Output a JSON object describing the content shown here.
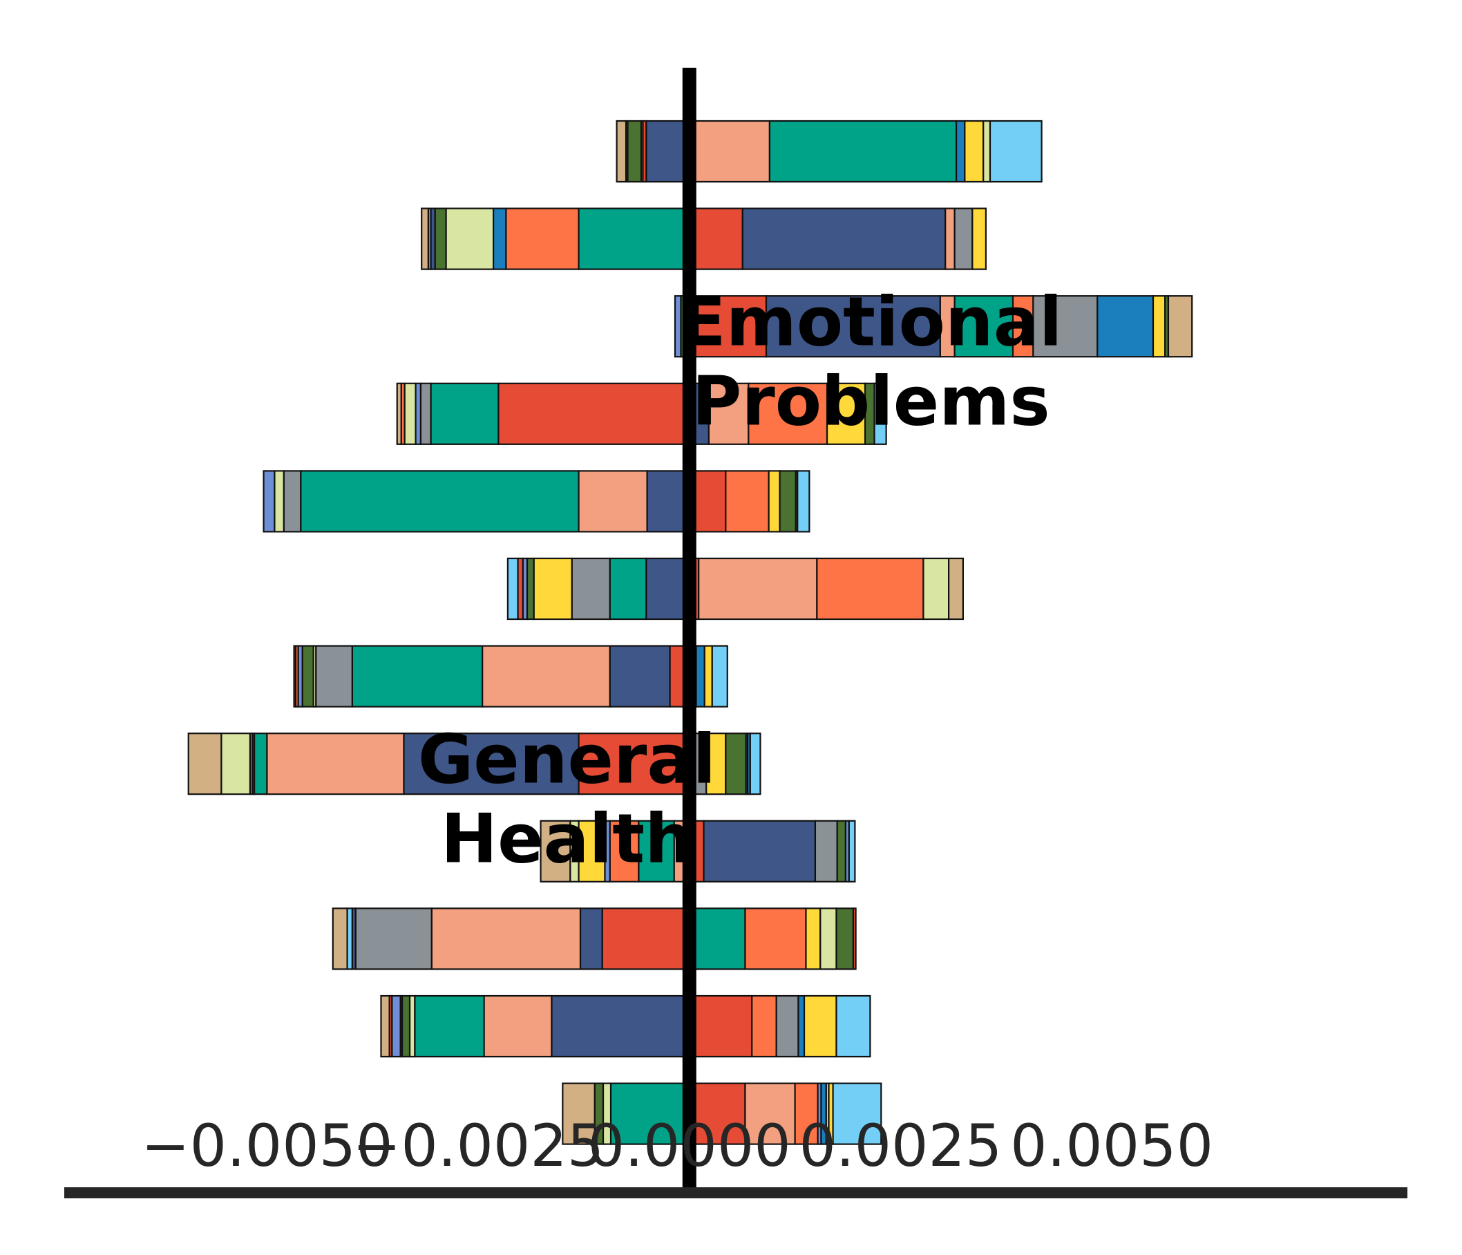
{
  "chart_data": {
    "type": "bar",
    "orientation": "horizontal",
    "stacking": "diverging",
    "xlim": [
      -0.0074,
      0.0085
    ],
    "xticks": [
      {
        "value": -0.005,
        "label": "−0.0050"
      },
      {
        "value": -0.0025,
        "label": "−0.0025"
      },
      {
        "value": 0.0,
        "label": "0.0000"
      },
      {
        "value": 0.0025,
        "label": "0.0025"
      },
      {
        "value": 0.005,
        "label": "0.0050"
      }
    ],
    "grid": false,
    "legend": "none",
    "annotations": [
      {
        "label": "emotional-problems-annotation",
        "lines": [
          "Emotional",
          "Problems"
        ],
        "x": 0.00215,
        "y": 2.4
      },
      {
        "label": "general-health-annotation",
        "lines": [
          "General",
          "Health"
        ],
        "x": -0.00145,
        "y": 7.4
      }
    ],
    "bars": [
      {
        "neg": [
          [
            "#d2b084",
            0.00011
          ],
          [
            "#4a7230",
            2e-05
          ],
          [
            "#4a7230",
            0.00016
          ],
          [
            "#f2a07f",
            2e-05
          ],
          [
            "#e64c35",
            4e-05
          ],
          [
            "#3f5688",
            0.00051
          ]
        ],
        "pos": [
          [
            "#f2a07f",
            0.00095
          ],
          [
            "#00a388",
            0.00221
          ],
          [
            "#1b7fbe",
            0.0001
          ],
          [
            "#ffd83a",
            0.00022
          ],
          [
            "#d9e6a1",
            8e-05
          ],
          [
            "#74cff7",
            0.00061
          ]
        ]
      },
      {
        "neg": [
          [
            "#d2b084",
            8e-05
          ],
          [
            "#6e8fd6",
            3e-05
          ],
          [
            "#3f5688",
            5e-05
          ],
          [
            "#4a7230",
            0.00013
          ],
          [
            "#d9e6a1",
            0.00056
          ],
          [
            "#1b7fbe",
            0.00015
          ],
          [
            "#ff7446",
            0.00086
          ],
          [
            "#00a388",
            0.00131
          ]
        ],
        "pos": [
          [
            "#e64c35",
            0.00063
          ],
          [
            "#3f5688",
            0.0024
          ],
          [
            "#f2a07f",
            0.00011
          ],
          [
            "#8b9297",
            0.00021
          ],
          [
            "#ffd83a",
            0.00016
          ]
        ]
      },
      {
        "neg": [
          [
            "#6e8fd6",
            7e-05
          ],
          [
            "#4a7230",
            0.0001
          ]
        ],
        "pos": [
          [
            "#e64c35",
            0.00091
          ],
          [
            "#3f5688",
            0.00206
          ],
          [
            "#f2a07f",
            0.00017
          ],
          [
            "#00a388",
            0.00069
          ],
          [
            "#ff7446",
            0.00024
          ],
          [
            "#8b9297",
            0.00076
          ],
          [
            "#1b7fbe",
            0.00066
          ],
          [
            "#ffd83a",
            0.00014
          ],
          [
            "#4a7230",
            4e-05
          ],
          [
            "#d2b084",
            0.00028
          ]
        ]
      },
      {
        "neg": [
          [
            "#d2b084",
            5e-05
          ],
          [
            "#ff7446",
            4e-05
          ],
          [
            "#d9e6a1",
            0.00013
          ],
          [
            "#6e8fd6",
            6e-05
          ],
          [
            "#8b9297",
            0.00012
          ],
          [
            "#00a388",
            0.0008
          ],
          [
            "#e64c35",
            0.00226
          ]
        ],
        "pos": [
          [
            "#3f5688",
            0.00023
          ],
          [
            "#f2a07f",
            0.00047
          ],
          [
            "#ff7446",
            0.00093
          ],
          [
            "#ffd83a",
            0.00045
          ],
          [
            "#4a7230",
            0.00011
          ],
          [
            "#74cff7",
            0.00014
          ]
        ]
      },
      {
        "neg": [
          [
            "#6e8fd6",
            0.00013
          ],
          [
            "#d9e6a1",
            0.00011
          ],
          [
            "#8b9297",
            0.0002
          ],
          [
            "#00a388",
            0.00329
          ],
          [
            "#f2a07f",
            0.00081
          ],
          [
            "#3f5688",
            0.0005
          ]
        ],
        "pos": [
          [
            "#e64c35",
            0.00043
          ],
          [
            "#ff7446",
            0.00051
          ],
          [
            "#ffd83a",
            0.00013
          ],
          [
            "#4a7230",
            0.00019
          ],
          [
            "#f2a07f",
            2e-05
          ],
          [
            "#74cff7",
            0.00014
          ]
        ]
      },
      {
        "neg": [
          [
            "#74cff7",
            0.00012
          ],
          [
            "#e64c35",
            6e-05
          ],
          [
            "#6e8fd6",
            5e-05
          ],
          [
            "#4a7230",
            8e-05
          ],
          [
            "#ffd83a",
            0.00045
          ],
          [
            "#8b9297",
            0.00045
          ],
          [
            "#00a388",
            0.00043
          ],
          [
            "#3f5688",
            0.00046
          ],
          [
            "#e64c35",
            5e-05
          ]
        ],
        "pos": [
          [
            "#e64c35",
            0.00011
          ],
          [
            "#f2a07f",
            0.0014
          ],
          [
            "#ff7446",
            0.00126
          ],
          [
            "#d9e6a1",
            0.0003
          ],
          [
            "#d2b084",
            0.00017
          ]
        ]
      },
      {
        "neg": [
          [
            "#e64c35",
            2e-05
          ],
          [
            "#ff7446",
            3e-05
          ],
          [
            "#6e8fd6",
            5e-05
          ],
          [
            "#4a7230",
            0.00013
          ],
          [
            "#d9e6a1",
            3e-05
          ],
          [
            "#8b9297",
            0.00043
          ],
          [
            "#00a388",
            0.00154
          ],
          [
            "#f2a07f",
            0.00151
          ],
          [
            "#3f5688",
            0.00071
          ],
          [
            "#e64c35",
            0.00023
          ]
        ],
        "pos": [
          [
            "#e64c35",
            8e-05
          ],
          [
            "#1b7fbe",
            0.0001
          ],
          [
            "#ffd83a",
            9e-05
          ],
          [
            "#74cff7",
            0.00018
          ]
        ]
      },
      {
        "neg": [
          [
            "#d2b084",
            0.00039
          ],
          [
            "#d9e6a1",
            0.00034
          ],
          [
            "#e64c35",
            3e-05
          ],
          [
            "#ff7446",
            2e-05
          ],
          [
            "#00a388",
            0.00015
          ],
          [
            "#f2a07f",
            0.00162
          ],
          [
            "#3f5688",
            0.00207
          ],
          [
            "#e64c35",
            0.00131
          ]
        ],
        "pos": [
          [
            "#8b9297",
            0.0002
          ],
          [
            "#ffd83a",
            0.00023
          ],
          [
            "#4a7230",
            0.00024
          ],
          [
            "#3f5688",
            2e-05
          ],
          [
            "#1b7fbe",
            3e-05
          ],
          [
            "#74cff7",
            0.00012
          ]
        ]
      },
      {
        "neg": [
          [
            "#d2b084",
            0.00035
          ],
          [
            "#d9e6a1",
            0.0001
          ],
          [
            "#ffd83a",
            0.00031
          ],
          [
            "#6e8fd6",
            6e-05
          ],
          [
            "#ff7446",
            0.00034
          ],
          [
            "#00a388",
            0.00042
          ],
          [
            "#f2a07f",
            0.00018
          ]
        ],
        "pos": [
          [
            "#e64c35",
            0.00017
          ],
          [
            "#3f5688",
            0.00132
          ],
          [
            "#8b9297",
            0.00026
          ],
          [
            "#4a7230",
            0.0001
          ],
          [
            "#6e8fd6",
            4e-05
          ],
          [
            "#74cff7",
            7e-05
          ]
        ]
      },
      {
        "neg": [
          [
            "#d2b084",
            0.00017
          ],
          [
            "#74cff7",
            6e-05
          ],
          [
            "#3f5688",
            4e-05
          ],
          [
            "#8b9297",
            0.0009
          ],
          [
            "#f2a07f",
            0.00176
          ],
          [
            "#3f5688",
            0.00026
          ],
          [
            "#e64c35",
            0.00103
          ]
        ],
        "pos": [
          [
            "#00a388",
            0.00066
          ],
          [
            "#ff7446",
            0.00072
          ],
          [
            "#ffd83a",
            0.00017
          ],
          [
            "#d9e6a1",
            0.00019
          ],
          [
            "#4a7230",
            0.0002
          ],
          [
            "#e64c35",
            3e-05
          ]
        ]
      },
      {
        "neg": [
          [
            "#d2b084",
            0.0001
          ],
          [
            "#e64c35",
            3e-05
          ],
          [
            "#6e8fd6",
            0.0001
          ],
          [
            "#3f5688",
            2e-05
          ],
          [
            "#4a7230",
            9e-05
          ],
          [
            "#d9e6a1",
            6e-05
          ],
          [
            "#00a388",
            0.00082
          ],
          [
            "#f2a07f",
            0.0008
          ],
          [
            "#3f5688",
            0.00163
          ]
        ],
        "pos": [
          [
            "#e64c35",
            0.00074
          ],
          [
            "#ff7446",
            0.00029
          ],
          [
            "#8b9297",
            0.00026
          ],
          [
            "#1b7fbe",
            7e-05
          ],
          [
            "#ffd83a",
            0.00038
          ],
          [
            "#74cff7",
            0.0004
          ]
        ]
      },
      {
        "neg": [
          [
            "#d2b084",
            0.00038
          ],
          [
            "#4a7230",
            0.0001
          ],
          [
            "#d9e6a1",
            9e-05
          ],
          [
            "#00a388",
            0.00087
          ],
          [
            "#3f5688",
            6e-05
          ]
        ],
        "pos": [
          [
            "#e64c35",
            0.00066
          ],
          [
            "#f2a07f",
            0.00059
          ],
          [
            "#ff7446",
            0.00027
          ],
          [
            "#6e8fd6",
            4e-05
          ],
          [
            "#1b7fbe",
            6e-05
          ],
          [
            "#d9e6a1",
            3e-05
          ],
          [
            "#ffd83a",
            5e-05
          ],
          [
            "#74cff7",
            0.00057
          ]
        ]
      }
    ]
  }
}
